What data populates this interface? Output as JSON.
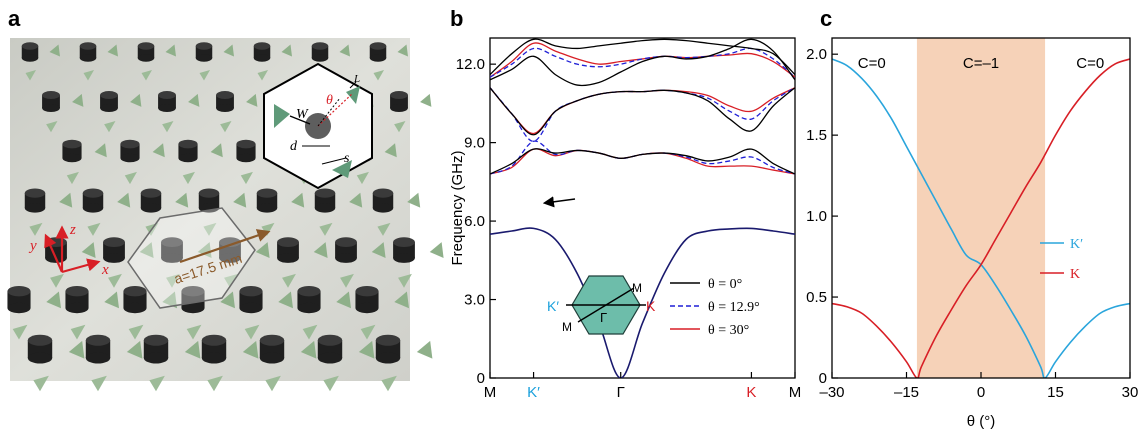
{
  "panel_labels": {
    "a": "a",
    "b": "b",
    "c": "c"
  },
  "photo": {
    "lattice_label": "a=17.5 mm",
    "axis_x": "x",
    "axis_y": "y",
    "axis_z": "z",
    "inset_W": "W",
    "inset_theta": "θ",
    "inset_d": "d",
    "inset_s": "s",
    "inset_L": "L",
    "colors": {
      "pillar": "#2b2b2b",
      "prism": "#8fb08a",
      "background": "#d7d8d2",
      "arrow": "#d81f26",
      "lattice_arrow": "#8a5a2b"
    }
  },
  "chart_data": [
    {
      "type": "line",
      "ylabel": "Frequency (GHz)",
      "xlabel": "",
      "ylim": [
        0,
        13
      ],
      "yticks": [
        0,
        3.0,
        6.0,
        9.0,
        12.0
      ],
      "ytick_labels": [
        "0",
        "3.0",
        "6.0",
        "9.0",
        "12.0"
      ],
      "xticks": [
        0,
        1,
        3,
        6,
        7
      ],
      "xtick_labels": [
        "M",
        "K′",
        "Γ",
        "K",
        "M"
      ],
      "xtick_colors": [
        "#000000",
        "#1aa0dc",
        "#000000",
        "#d81f26",
        "#000000"
      ],
      "xlim": [
        0,
        7
      ],
      "legend_position": "bottom-right",
      "legend": [
        {
          "label": "θ = 0°",
          "color": "#000000",
          "dash": "solid"
        },
        {
          "label": "θ = 12.9°",
          "color": "#1f1fd6",
          "dash": "dashed"
        },
        {
          "label": "θ = 30°",
          "color": "#d81f26",
          "dash": "solid"
        }
      ],
      "bz_labels": {
        "Kp": "K′",
        "K": "K",
        "M_top": "M",
        "M_bottom": "M",
        "Gamma": "Γ"
      },
      "bands": {
        "x": [
          0,
          0.5,
          1,
          1.5,
          2,
          2.5,
          3,
          3.5,
          4,
          4.5,
          5,
          5.5,
          6,
          6.5,
          7
        ],
        "band1": [
          5.5,
          5.62,
          5.72,
          5.3,
          4.0,
          2.1,
          0.0,
          2.1,
          4.0,
          5.3,
          5.62,
          5.7,
          5.72,
          5.62,
          5.5
        ],
        "band2": {
          "theta0": [
            7.8,
            8.2,
            8.75,
            8.6,
            8.7,
            8.6,
            8.4,
            8.55,
            8.6,
            8.5,
            8.3,
            8.45,
            8.75,
            8.2,
            7.8
          ],
          "theta12": [
            7.8,
            8.1,
            9.05,
            8.55,
            8.7,
            8.6,
            8.4,
            8.55,
            8.6,
            8.45,
            8.2,
            8.3,
            8.45,
            8.05,
            7.8
          ],
          "theta30": [
            7.8,
            8.05,
            8.75,
            8.5,
            8.7,
            8.6,
            8.4,
            8.55,
            8.6,
            8.4,
            8.1,
            8.1,
            8.1,
            7.95,
            7.8
          ]
        },
        "band3": {
          "theta0": [
            11.1,
            10.1,
            9.3,
            10.2,
            10.6,
            10.85,
            10.95,
            10.95,
            11.0,
            10.9,
            10.6,
            9.9,
            9.45,
            10.4,
            11.1
          ],
          "theta12": [
            11.1,
            10.1,
            9.05,
            10.2,
            10.6,
            10.85,
            10.95,
            10.95,
            11.0,
            10.9,
            10.7,
            10.2,
            9.9,
            10.6,
            11.1
          ],
          "theta30": [
            11.1,
            10.1,
            9.35,
            10.2,
            10.6,
            10.85,
            10.95,
            10.95,
            11.0,
            10.95,
            10.8,
            10.4,
            10.2,
            10.7,
            11.1
          ]
        },
        "band4": {
          "theta0": [
            11.4,
            11.8,
            12.3,
            11.6,
            11.2,
            11.3,
            11.7,
            12.1,
            12.3,
            12.2,
            12.3,
            12.6,
            12.95,
            12.5,
            11.4
          ],
          "theta12": [
            11.5,
            12.0,
            12.6,
            12.3,
            12.0,
            11.9,
            12.0,
            12.2,
            12.3,
            12.25,
            12.3,
            12.4,
            12.6,
            12.2,
            11.5
          ],
          "theta30": [
            11.5,
            12.1,
            12.8,
            12.5,
            12.2,
            12.0,
            12.1,
            12.2,
            12.3,
            12.25,
            12.3,
            12.35,
            12.4,
            12.1,
            11.5
          ]
        },
        "band5": {
          "theta0": [
            11.6,
            12.4,
            12.95,
            12.7,
            12.6,
            12.7,
            12.8,
            12.9,
            12.95,
            12.9,
            12.8,
            12.7,
            12.6,
            12.4,
            11.6
          ]
        }
      }
    },
    {
      "type": "line",
      "xlabel": "θ (°)",
      "ylabel": "",
      "xlim": [
        -30,
        30
      ],
      "ylim": [
        0,
        2.1
      ],
      "xticks": [
        -30,
        -15,
        0,
        15,
        30
      ],
      "xtick_labels": [
        "–30",
        "–15",
        "0",
        "15",
        "30"
      ],
      "yticks": [
        0,
        0.5,
        1.0,
        1.5,
        2.0
      ],
      "ytick_labels": [
        "0",
        "0.5",
        "1.0",
        "1.5",
        "2.0"
      ],
      "shaded_region": {
        "from": -12.9,
        "to": 12.9,
        "color": "#f6d2b8"
      },
      "region_labels": [
        {
          "text": "C=0",
          "x": -22
        },
        {
          "text": "C=–1",
          "x": 0
        },
        {
          "text": "C=0",
          "x": 22
        }
      ],
      "legend_position": "right",
      "series": [
        {
          "name": "K′",
          "color": "#2aa5dc",
          "x": [
            -30,
            -27,
            -24,
            -21,
            -18,
            -15,
            -12,
            -9,
            -6,
            -3,
            0,
            3,
            6,
            9,
            12,
            12.9,
            15,
            18,
            21,
            24,
            27,
            30
          ],
          "y": [
            1.97,
            1.93,
            1.85,
            1.74,
            1.6,
            1.43,
            1.26,
            1.09,
            0.92,
            0.76,
            0.7,
            0.57,
            0.42,
            0.26,
            0.07,
            0.0,
            0.1,
            0.22,
            0.32,
            0.4,
            0.44,
            0.46
          ]
        },
        {
          "name": "K",
          "color": "#d81f26",
          "x": [
            -30,
            -27,
            -24,
            -21,
            -18,
            -15,
            -12.9,
            -12,
            -9,
            -6,
            -3,
            0,
            3,
            6,
            9,
            12,
            15,
            18,
            21,
            24,
            27,
            30
          ],
          "y": [
            0.46,
            0.44,
            0.4,
            0.32,
            0.22,
            0.1,
            0.0,
            0.07,
            0.26,
            0.42,
            0.57,
            0.7,
            0.86,
            1.02,
            1.18,
            1.33,
            1.5,
            1.65,
            1.77,
            1.87,
            1.94,
            1.97
          ]
        }
      ]
    }
  ]
}
